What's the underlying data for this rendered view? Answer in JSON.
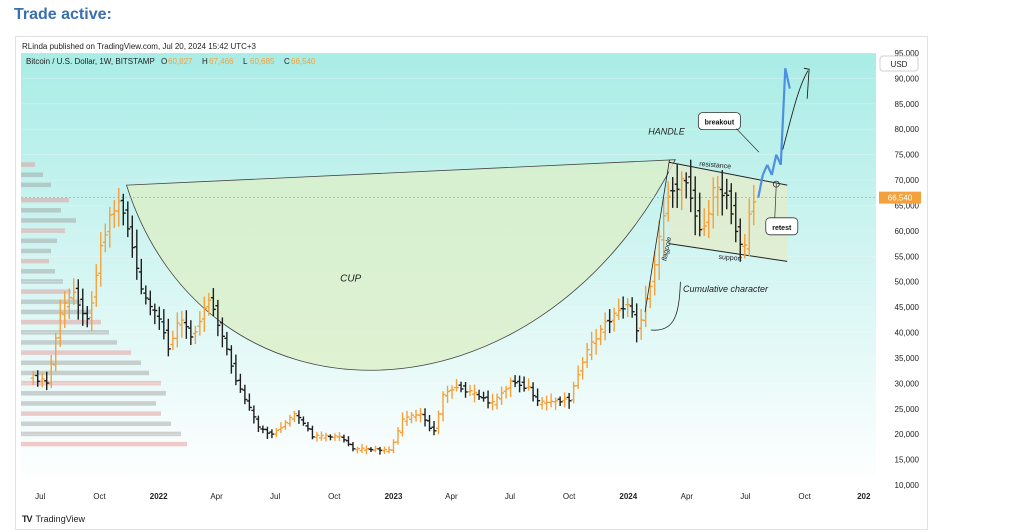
{
  "page": {
    "heading": "Trade active:",
    "publisher": "RLinda published on TradingView.com, Jul 20, 2024 15:42 UTC+3",
    "footer_brand": "TradingView",
    "logo_icon": "tradingview-logo-icon"
  },
  "chart_data": {
    "type": "candlestick",
    "symbol": "Bitcoin / U.S. Dollar, 1W, BITSTAMP",
    "ohlc": {
      "O": "60,827",
      "H": "67,466",
      "L": "60,685",
      "C": "66,540"
    },
    "currency": "USD",
    "last_price": 66540,
    "last_price_label": "66,540",
    "ylim": [
      10000,
      95000
    ],
    "y_ticks": [
      10000,
      15000,
      20000,
      25000,
      30000,
      35000,
      40000,
      45000,
      50000,
      55000,
      60000,
      65000,
      70000,
      75000,
      80000,
      85000,
      90000,
      95000
    ],
    "y_tick_labels": [
      "10,000",
      "15,000",
      "20,000",
      "25,000",
      "30,000",
      "35,000",
      "40,000",
      "45,000",
      "50,000",
      "55,000",
      "60,000",
      "65,000",
      "70,000",
      "75,000",
      "80,000",
      "85,000",
      "90,000",
      "95,000"
    ],
    "x_ticks": [
      {
        "date": "2021-07-01",
        "label": "Jul"
      },
      {
        "date": "2021-10-01",
        "label": "Oct"
      },
      {
        "date": "2022-01-01",
        "label": "2022",
        "bold": true
      },
      {
        "date": "2022-04-01",
        "label": "Apr"
      },
      {
        "date": "2022-07-01",
        "label": "Jul"
      },
      {
        "date": "2022-10-01",
        "label": "Oct"
      },
      {
        "date": "2023-01-01",
        "label": "2023",
        "bold": true
      },
      {
        "date": "2023-04-01",
        "label": "Apr"
      },
      {
        "date": "2023-07-01",
        "label": "Jul"
      },
      {
        "date": "2023-10-01",
        "label": "Oct"
      },
      {
        "date": "2024-01-01",
        "label": "2024",
        "bold": true
      },
      {
        "date": "2024-04-01",
        "label": "Apr"
      },
      {
        "date": "2024-07-01",
        "label": "Jul"
      },
      {
        "date": "2024-10-01",
        "label": "Oct"
      },
      {
        "date": "2025-01-01",
        "label": "202",
        "bold": true
      }
    ],
    "price_path": [
      [
        "2021-06-20",
        31500
      ],
      [
        "2021-07-20",
        30000
      ],
      [
        "2021-08-08",
        44000
      ],
      [
        "2021-08-29",
        48000
      ],
      [
        "2021-09-20",
        42000
      ],
      [
        "2021-10-10",
        57000
      ],
      [
        "2021-10-24",
        63000
      ],
      [
        "2021-11-10",
        66000
      ],
      [
        "2021-11-28",
        57000
      ],
      [
        "2021-12-12",
        48000
      ],
      [
        "2022-01-10",
        42000
      ],
      [
        "2022-01-24",
        37000
      ],
      [
        "2022-02-10",
        43000
      ],
      [
        "2022-02-28",
        39000
      ],
      [
        "2022-03-28",
        47000
      ],
      [
        "2022-04-10",
        42000
      ],
      [
        "2022-05-10",
        30000
      ],
      [
        "2022-06-13",
        21000
      ],
      [
        "2022-07-04",
        20000
      ],
      [
        "2022-08-08",
        24000
      ],
      [
        "2022-09-05",
        19500
      ],
      [
        "2022-10-17",
        19500
      ],
      [
        "2022-11-07",
        17000
      ],
      [
        "2022-12-12",
        17000
      ],
      [
        "2023-01-02",
        16700
      ],
      [
        "2023-01-23",
        23000
      ],
      [
        "2023-02-20",
        24000
      ],
      [
        "2023-03-10",
        20000
      ],
      [
        "2023-03-27",
        28000
      ],
      [
        "2023-04-17",
        29500
      ],
      [
        "2023-06-12",
        26000
      ],
      [
        "2023-07-10",
        30500
      ],
      [
        "2023-08-07",
        29000
      ],
      [
        "2023-08-21",
        26000
      ],
      [
        "2023-10-09",
        27000
      ],
      [
        "2023-10-30",
        35000
      ],
      [
        "2023-12-04",
        42000
      ],
      [
        "2024-01-08",
        46000
      ],
      [
        "2024-01-22",
        40000
      ],
      [
        "2024-02-12",
        50000
      ],
      [
        "2024-03-11",
        68000
      ],
      [
        "2024-04-08",
        70000
      ],
      [
        "2024-05-01",
        59000
      ],
      [
        "2024-05-20",
        68000
      ],
      [
        "2024-06-10",
        67000
      ],
      [
        "2024-07-05",
        55000
      ],
      [
        "2024-07-14",
        63000
      ],
      [
        "2024-07-21",
        66540
      ]
    ],
    "projection": [
      [
        "2024-07-21",
        66540
      ],
      [
        "2024-07-28",
        71000
      ],
      [
        "2024-08-04",
        73000
      ],
      [
        "2024-08-11",
        71000
      ],
      [
        "2024-08-18",
        75000
      ],
      [
        "2024-08-25",
        73000
      ],
      [
        "2024-09-01",
        92000
      ],
      [
        "2024-09-08",
        88000
      ]
    ],
    "annotations": {
      "cup": "CUP",
      "handle": "HANDLE",
      "resistance": "resistance",
      "support": "support",
      "flagpole": "flagpole",
      "breakout": "breakout",
      "retest": "retest",
      "cumulative": "Cumulative character"
    },
    "colors": {
      "up": "#f5a13b",
      "down": "#1e1e1e",
      "projection": "#4f8fe3",
      "cup_fill": "#dcefc6",
      "handle_fill": "#e3eccc",
      "price_line": "#f5a13b",
      "bg_top": "#a9ece6",
      "bg_bottom": "#ffffff",
      "axis_text": "#222222"
    }
  }
}
